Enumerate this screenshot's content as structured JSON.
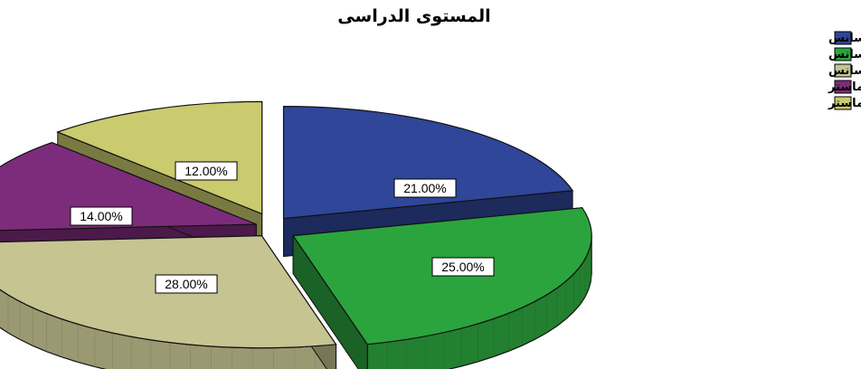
{
  "chart_data": {
    "type": "pie",
    "title": "المستوى الدراسى",
    "legend_placement": "top-right",
    "style": "3d-exploded",
    "slices": [
      {
        "name": "أولى ليسانس",
        "value": 21.0,
        "label": "21.00%",
        "color": "#2F4699"
      },
      {
        "name": "ثانية ليسانس",
        "value": 25.0,
        "label": "25.00%",
        "color": "#2BA43E"
      },
      {
        "name": "ثالثة ليسانس",
        "value": 28.0,
        "label": "28.00%",
        "color": "#C6C491"
      },
      {
        "name": "أولى ماستر",
        "value": 14.0,
        "label": "14.00%",
        "color": "#7D2C7B"
      },
      {
        "name": "ثانية ماستر",
        "value": 12.0,
        "label": "12.00%",
        "color": "#CACA6E"
      }
    ]
  }
}
